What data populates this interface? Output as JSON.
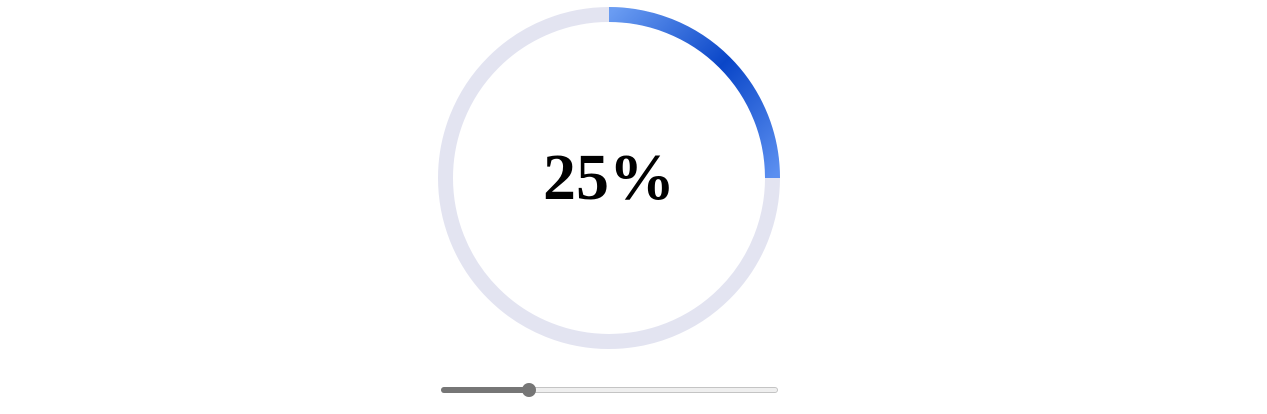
{
  "progress": {
    "value": 25,
    "label": "25%",
    "track_color": "#e3e4f1",
    "arc_color_start": "#6a9cf2",
    "arc_color_mid": "#0a46c8",
    "arc_color_end": "#5b8ff0"
  },
  "slider": {
    "value": 25,
    "min": 0,
    "max": 100
  }
}
